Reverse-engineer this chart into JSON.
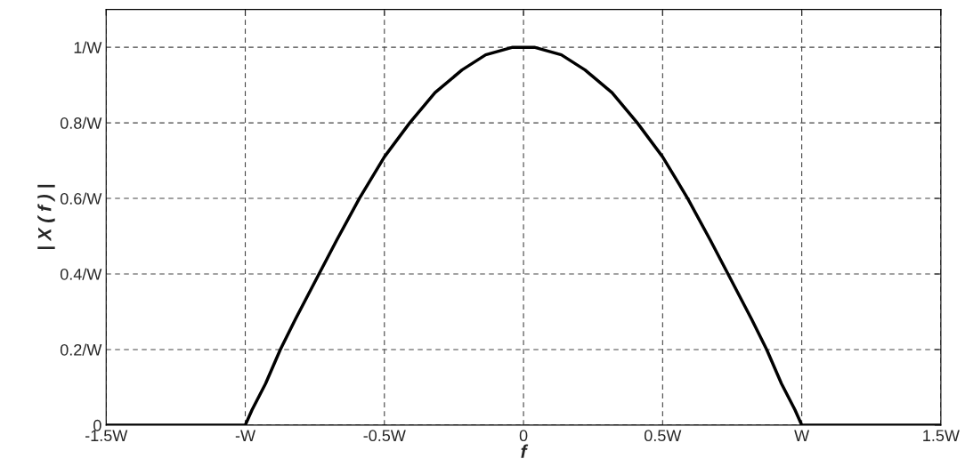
{
  "chart_data": {
    "type": "line",
    "xlabel": "f",
    "ylabel": "| X ( f ) |",
    "x": [
      -1.5,
      -1.0,
      -0.976,
      -0.927,
      -0.874,
      -0.82,
      -0.735,
      -0.671,
      -0.59,
      -0.5,
      -0.409,
      -0.318,
      -0.221,
      -0.136,
      -0.039,
      0,
      0.039,
      0.136,
      0.221,
      0.318,
      0.409,
      0.5,
      0.59,
      0.671,
      0.735,
      0.82,
      0.874,
      0.927,
      0.976,
      1.0,
      1.5
    ],
    "series": [
      {
        "color": "#000000",
        "values": [
          0,
          0,
          0.04,
          0.11,
          0.2,
          0.28,
          0.4,
          0.49,
          0.6,
          0.71,
          0.8,
          0.88,
          0.94,
          0.98,
          1.0,
          1.0,
          1.0,
          0.98,
          0.94,
          0.88,
          0.8,
          0.71,
          0.6,
          0.49,
          0.4,
          0.28,
          0.2,
          0.11,
          0.04,
          0,
          0
        ]
      }
    ],
    "xlim": [
      -1.5,
      1.5
    ],
    "xticks": [
      {
        "value": -1.5,
        "label": "-1.5W"
      },
      {
        "value": -1,
        "label": "-W"
      },
      {
        "value": -0.5,
        "label": "-0.5W"
      },
      0,
      {
        "value": 0.5,
        "label": "0.5W"
      },
      {
        "value": 1,
        "label": "W"
      },
      {
        "value": 1.5,
        "label": "1.5W"
      }
    ],
    "ylim": [
      0,
      1.1
    ],
    "yticks": [
      0,
      {
        "value": 0.2,
        "label": "0.2/W"
      },
      {
        "value": 0.4,
        "label": "0.4/W"
      },
      {
        "value": 0.6,
        "label": "0.6/W"
      },
      {
        "value": 0.8,
        "label": "0.8/W"
      },
      {
        "value": 1,
        "label": "1/W"
      }
    ],
    "grid": true,
    "line_style": "solid",
    "marker": "none"
  }
}
